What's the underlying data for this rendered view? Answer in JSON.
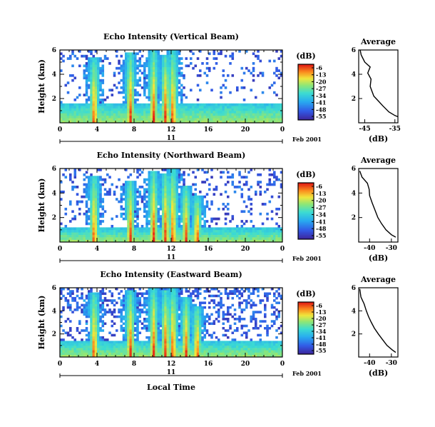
{
  "chart_data": [
    {
      "type": "heatmap",
      "title": "Echo Intensity (Vertical Beam)",
      "ylabel": "Height (km)",
      "xlabel": "",
      "x_ticks": [
        "0",
        "4",
        "8",
        "12",
        "16",
        "20",
        "0"
      ],
      "y_ticks": [
        "2",
        "4",
        "6"
      ],
      "xlim": [
        0,
        24
      ],
      "ylim": [
        0,
        6
      ],
      "day_label": "11",
      "date_label": "Feb 2001",
      "colorbar": {
        "unit": "(dB)",
        "labels": [
          "-6",
          "-13",
          "-20",
          "-27",
          "-34",
          "-41",
          "-48",
          "-55"
        ]
      },
      "columns": [
        [
          3.7,
          5.4
        ],
        [
          7.6,
          5.8
        ],
        [
          10.1,
          6.0
        ],
        [
          11.4,
          5.6
        ],
        [
          12.2,
          6.0
        ]
      ],
      "layer": {
        "top": 1.6,
        "until": 24
      },
      "seed": 7,
      "noise": 0.12,
      "profile": {
        "title": "Average",
        "xlabel": "(dB)",
        "x_ticks": [
          "-45",
          "-35"
        ],
        "xlim": [
          -47,
          -34
        ],
        "y_ticks": [
          "2",
          "4",
          "6"
        ],
        "ylim": [
          0,
          6
        ],
        "points": [
          [
            -46.5,
            6.0
          ],
          [
            -46.2,
            5.6
          ],
          [
            -45.0,
            5.0
          ],
          [
            -43.2,
            4.6
          ],
          [
            -44.0,
            4.1
          ],
          [
            -42.9,
            3.6
          ],
          [
            -43.2,
            3.0
          ],
          [
            -42.6,
            2.6
          ],
          [
            -42.0,
            2.2
          ],
          [
            -40.5,
            1.8
          ],
          [
            -39.0,
            1.4
          ],
          [
            -37.0,
            0.9
          ],
          [
            -35.0,
            0.6
          ],
          [
            -34.0,
            0.5
          ]
        ]
      }
    },
    {
      "type": "heatmap",
      "title": "Echo Intensity (Northward Beam)",
      "ylabel": "Height (km)",
      "xlabel": "",
      "x_ticks": [
        "0",
        "4",
        "8",
        "12",
        "16",
        "20",
        "0"
      ],
      "y_ticks": [
        "2",
        "4",
        "6"
      ],
      "xlim": [
        0,
        24
      ],
      "ylim": [
        0,
        6
      ],
      "day_label": "11",
      "date_label": "Feb 2001",
      "colorbar": {
        "unit": "(dB)",
        "labels": [
          "-6",
          "-13",
          "-20",
          "-27",
          "-34",
          "-41",
          "-48",
          "-55"
        ]
      },
      "columns": [
        [
          3.7,
          5.4
        ],
        [
          7.6,
          5.0
        ],
        [
          10.1,
          5.8
        ],
        [
          11.4,
          5.5
        ],
        [
          12.2,
          6.0
        ],
        [
          13.6,
          4.5
        ],
        [
          14.8,
          3.8
        ]
      ],
      "layer": {
        "top": 1.2,
        "until": 24
      },
      "seed": 19,
      "noise": 0.18,
      "profile": {
        "title": "Average",
        "xlabel": "(dB)",
        "x_ticks": [
          "-40",
          "-30"
        ],
        "xlim": [
          -45,
          -27
        ],
        "y_ticks": [
          "2",
          "4",
          "6"
        ],
        "ylim": [
          0,
          6
        ],
        "points": [
          [
            -44.5,
            5.8
          ],
          [
            -43.5,
            5.3
          ],
          [
            -41.0,
            4.8
          ],
          [
            -40.2,
            4.3
          ],
          [
            -40.0,
            3.8
          ],
          [
            -38.8,
            3.2
          ],
          [
            -37.5,
            2.6
          ],
          [
            -36.2,
            2.0
          ],
          [
            -34.5,
            1.5
          ],
          [
            -32.5,
            1.0
          ],
          [
            -30.0,
            0.6
          ],
          [
            -28.0,
            0.4
          ]
        ]
      }
    },
    {
      "type": "heatmap",
      "title": "Echo Intensity (Eastward Beam)",
      "ylabel": "Height (km)",
      "xlabel": "Local Time",
      "x_ticks": [
        "0",
        "4",
        "8",
        "12",
        "16",
        "20",
        "0"
      ],
      "y_ticks": [
        "2",
        "4",
        "6"
      ],
      "xlim": [
        0,
        24
      ],
      "ylim": [
        0,
        6
      ],
      "day_label": "11",
      "date_label": "Feb 2001",
      "colorbar": {
        "unit": "(dB)",
        "labels": [
          "-6",
          "-13",
          "-20",
          "-27",
          "-34",
          "-41",
          "-48",
          "-55"
        ]
      },
      "columns": [
        [
          3.7,
          5.6
        ],
        [
          7.6,
          5.8
        ],
        [
          10.1,
          6.0
        ],
        [
          11.4,
          5.8
        ],
        [
          12.2,
          6.0
        ],
        [
          13.6,
          5.2
        ],
        [
          14.8,
          4.4
        ]
      ],
      "layer": {
        "top": 1.4,
        "until": 24
      },
      "seed": 31,
      "noise": 0.32,
      "profile": {
        "title": "Average",
        "xlabel": "(dB)",
        "x_ticks": [
          "-40",
          "-30"
        ],
        "xlim": [
          -45,
          -27
        ],
        "y_ticks": [
          "2",
          "4",
          "6"
        ],
        "ylim": [
          0,
          6
        ],
        "points": [
          [
            -44.5,
            5.9
          ],
          [
            -44.0,
            5.2
          ],
          [
            -42.5,
            4.6
          ],
          [
            -41.5,
            4.0
          ],
          [
            -40.5,
            3.5
          ],
          [
            -39.2,
            3.0
          ],
          [
            -37.8,
            2.5
          ],
          [
            -36.0,
            2.0
          ],
          [
            -34.0,
            1.5
          ],
          [
            -32.0,
            1.0
          ],
          [
            -29.5,
            0.6
          ],
          [
            -28.0,
            0.4
          ]
        ]
      }
    }
  ]
}
